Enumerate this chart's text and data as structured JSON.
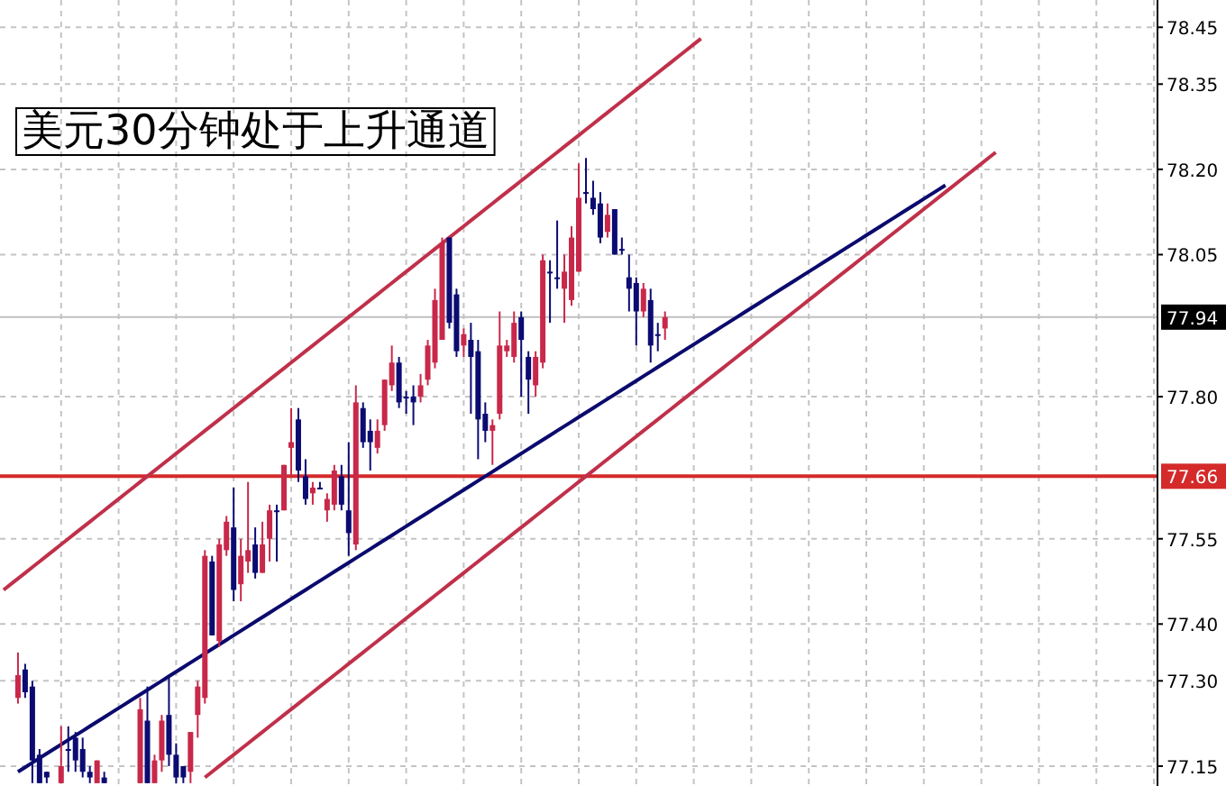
{
  "chart_data": {
    "type": "candlestick",
    "title": "美元30分钟处于上升通道",
    "categories": [
      null,
      null,
      null,
      null,
      null,
      null,
      null,
      null,
      null,
      null,
      null,
      null,
      null,
      null,
      null,
      null,
      null,
      null,
      null,
      null,
      null,
      null,
      null,
      null,
      null,
      null,
      null,
      null,
      null,
      null,
      null,
      null,
      null,
      null,
      null,
      null,
      null,
      null,
      null,
      null,
      null,
      null,
      null,
      null,
      null,
      null,
      null,
      null,
      null,
      null,
      null,
      null,
      null,
      null,
      null,
      null,
      null,
      null,
      null,
      null,
      null,
      null,
      null,
      null,
      null,
      null,
      null,
      null,
      null,
      null,
      null,
      null,
      null,
      null,
      null,
      null,
      null,
      null,
      null,
      null,
      null,
      null,
      null,
      null,
      null,
      null,
      null,
      null,
      null,
      null,
      null,
      null,
      null,
      null,
      null,
      null,
      null,
      null,
      null,
      null,
      null,
      null,
      null,
      null,
      null,
      null,
      null,
      null,
      null,
      null,
      null,
      null,
      null,
      null,
      null,
      null,
      null,
      null,
      null,
      null,
      null,
      null,
      null,
      null,
      null,
      null,
      null,
      null,
      null,
      null,
      null,
      null,
      null,
      null,
      null,
      null,
      null,
      null,
      null,
      null,
      null,
      null,
      null,
      null,
      null,
      null,
      null,
      null,
      null,
      null,
      null,
      null,
      null,
      null,
      null,
      null,
      null,
      null,
      null,
      null,
      null
    ],
    "ohlc": [
      null,
      null,
      [
        77.27,
        77.35,
        77.26,
        77.31
      ],
      [
        77.32,
        77.33,
        77.27,
        77.28
      ],
      [
        77.29,
        77.3,
        77.12,
        77.16
      ],
      [
        77.17,
        77.18,
        77.12,
        77.12
      ],
      [
        77.14,
        77.14,
        77.12,
        77.13
      ],
      null,
      [
        77.12,
        77.22,
        77.12,
        77.15
      ],
      [
        77.18,
        77.22,
        77.14,
        77.18
      ],
      [
        77.2,
        77.21,
        77.14,
        77.16
      ],
      [
        77.18,
        77.2,
        77.13,
        77.14
      ],
      [
        77.14,
        77.15,
        77.12,
        77.13
      ],
      [
        77.12,
        77.16,
        77.12,
        77.16
      ],
      [
        77.13,
        77.14,
        77.12,
        77.12
      ],
      null,
      null,
      null,
      null,
      [
        77.12,
        77.27,
        77.12,
        77.25
      ],
      [
        77.23,
        77.29,
        77.12,
        77.12
      ],
      [
        77.12,
        77.17,
        77.12,
        77.16
      ],
      [
        77.16,
        77.24,
        77.14,
        77.23
      ],
      [
        77.24,
        77.31,
        77.15,
        77.17
      ],
      [
        77.17,
        77.19,
        77.12,
        77.13
      ],
      [
        77.15,
        77.15,
        77.12,
        77.13
      ],
      [
        77.14,
        77.21,
        77.12,
        77.21
      ],
      [
        77.24,
        77.3,
        77.2,
        77.29
      ],
      [
        77.27,
        77.53,
        77.26,
        77.52
      ],
      [
        77.51,
        77.52,
        77.38,
        77.38
      ],
      [
        77.37,
        77.55,
        77.36,
        77.54
      ],
      [
        77.53,
        77.59,
        77.52,
        77.58
      ],
      [
        77.57,
        77.64,
        77.44,
        77.46
      ],
      [
        77.47,
        77.55,
        77.44,
        77.52
      ],
      [
        77.51,
        77.65,
        77.49,
        77.53
      ],
      [
        77.54,
        77.57,
        77.48,
        77.49
      ],
      [
        77.49,
        77.58,
        77.49,
        77.54
      ],
      [
        77.55,
        77.61,
        77.51,
        77.6
      ],
      [
        77.6,
        77.61,
        77.51,
        77.6
      ],
      [
        77.6,
        77.68,
        77.6,
        77.68
      ],
      [
        77.71,
        77.78,
        77.66,
        77.72
      ],
      [
        77.76,
        77.78,
        77.65,
        77.67
      ],
      [
        77.66,
        77.69,
        77.61,
        77.62
      ],
      [
        77.63,
        77.65,
        77.61,
        77.64
      ],
      [
        77.64,
        77.65,
        77.64,
        77.64
      ],
      [
        77.6,
        77.63,
        77.58,
        77.62
      ],
      [
        77.61,
        77.68,
        77.6,
        77.67
      ],
      [
        77.66,
        77.68,
        77.6,
        77.61
      ],
      [
        77.6,
        77.72,
        77.52,
        77.56
      ],
      [
        77.54,
        77.82,
        77.53,
        77.79
      ],
      [
        77.78,
        77.79,
        77.71,
        77.72
      ],
      [
        77.74,
        77.76,
        77.67,
        77.72
      ],
      [
        77.71,
        77.76,
        77.7,
        77.74
      ],
      [
        77.75,
        77.83,
        77.74,
        77.83
      ],
      [
        77.82,
        77.89,
        77.81,
        77.86
      ],
      [
        77.86,
        77.87,
        77.78,
        77.79
      ],
      [
        77.8,
        77.81,
        77.77,
        77.8
      ],
      [
        77.8,
        77.82,
        77.75,
        77.79
      ],
      [
        77.8,
        77.84,
        77.79,
        77.82
      ],
      [
        77.83,
        77.9,
        77.82,
        77.89
      ],
      [
        77.86,
        77.99,
        77.85,
        77.97
      ],
      [
        77.9,
        78.08,
        77.9,
        78.07
      ],
      [
        78.08,
        78.08,
        77.92,
        77.93
      ],
      [
        77.98,
        77.99,
        77.87,
        77.88
      ],
      [
        77.89,
        77.92,
        77.87,
        77.91
      ],
      [
        77.9,
        77.93,
        77.77,
        77.87
      ],
      [
        77.88,
        77.9,
        77.69,
        77.76
      ],
      [
        77.77,
        77.79,
        77.72,
        77.74
      ],
      [
        77.74,
        77.76,
        77.68,
        77.75
      ],
      [
        77.77,
        77.95,
        77.76,
        77.89
      ],
      [
        77.88,
        77.9,
        77.87,
        77.89
      ],
      [
        77.87,
        77.95,
        77.86,
        77.93
      ],
      [
        77.94,
        77.95,
        77.8,
        77.9
      ],
      [
        77.87,
        77.88,
        77.77,
        77.83
      ],
      [
        77.82,
        77.88,
        77.8,
        77.87
      ],
      [
        77.86,
        78.05,
        77.85,
        78.04
      ],
      [
        78.02,
        78.04,
        77.93,
        78.02
      ],
      [
        78.01,
        78.11,
        77.99,
        78.01
      ],
      [
        77.99,
        78.05,
        77.93,
        78.02
      ],
      [
        77.97,
        78.1,
        77.96,
        78.08
      ],
      [
        78.02,
        78.21,
        78.02,
        78.15
      ],
      [
        78.16,
        78.22,
        78.14,
        78.16
      ],
      [
        78.15,
        78.18,
        78.12,
        78.13
      ],
      [
        78.14,
        78.16,
        78.07,
        78.08
      ],
      [
        78.09,
        78.14,
        78.08,
        78.12
      ],
      [
        78.13,
        78.13,
        78.05,
        78.05
      ],
      [
        78.06,
        78.08,
        78.05,
        78.06
      ],
      [
        78.01,
        78.05,
        77.95,
        77.99
      ],
      [
        78.0,
        78.01,
        77.89,
        77.95
      ],
      [
        77.95,
        78.0,
        77.94,
        77.99
      ],
      [
        77.97,
        77.99,
        77.86,
        77.89
      ],
      [
        77.91,
        77.93,
        77.88,
        77.91
      ],
      [
        77.92,
        77.95,
        77.9,
        77.94
      ],
      null,
      null,
      null,
      null,
      null,
      null,
      null,
      null,
      null,
      null,
      null,
      null,
      null,
      null,
      null,
      null,
      null,
      null,
      null,
      null,
      null,
      null,
      null,
      null,
      null,
      null,
      null,
      null,
      null,
      null,
      null,
      null,
      null,
      null,
      null,
      null,
      null,
      null,
      null,
      null,
      null,
      null,
      null,
      null,
      null,
      null,
      null,
      null,
      null,
      null,
      null,
      null,
      null,
      null,
      null,
      null,
      null,
      null,
      null,
      null,
      null,
      null,
      null,
      null,
      null,
      null,
      null,
      null
    ],
    "colors": [
      null,
      null,
      "#c8284a",
      "#0b0b72",
      "#0b0b72",
      "#0b0b72",
      "#0b0b72",
      null,
      "#c8284a",
      "#0b0b72",
      "#0b0b72",
      "#0b0b72",
      "#0b0b72",
      "#c8284a",
      "#0b0b72",
      null,
      null,
      null,
      null,
      "#c8284a",
      "#0b0b72",
      "#c8284a",
      "#c8284a",
      "#0b0b72",
      "#0b0b72",
      "#0b0b72",
      "#c8284a",
      "#c8284a",
      "#c8284a",
      "#0b0b72",
      "#c8284a",
      "#c8284a",
      "#0b0b72",
      "#c8284a",
      "#c8284a",
      "#0b0b72",
      "#c8284a",
      "#c8284a",
      "#0b0b72",
      "#c8284a",
      "#c8284a",
      "#0b0b72",
      "#0b0b72",
      "#c8284a",
      "#0b0b72",
      "#c8284a",
      "#c8284a",
      "#0b0b72",
      "#0b0b72",
      "#c8284a",
      "#0b0b72",
      "#0b0b72",
      "#c8284a",
      "#c8284a",
      "#c8284a",
      "#0b0b72",
      "#0b0b72",
      "#0b0b72",
      "#c8284a",
      "#c8284a",
      "#c8284a",
      "#c8284a",
      "#0b0b72",
      "#0b0b72",
      "#c8284a",
      "#0b0b72",
      "#0b0b72",
      "#0b0b72",
      "#c8284a",
      "#c8284a",
      "#c8284a",
      "#c8284a",
      "#0b0b72",
      "#0b0b72",
      "#c8284a",
      "#c8284a",
      "#0b0b72",
      "#0b0b72",
      "#c8284a",
      "#c8284a",
      "#c8284a",
      "#0b0b72",
      "#0b0b72",
      "#0b0b72",
      "#c8284a",
      "#0b0b72",
      "#0b0b72",
      "#0b0b72",
      "#0b0b72",
      "#c8284a",
      "#0b0b72",
      "#0b0b72",
      "#c8284a",
      null,
      null,
      null,
      null,
      null,
      null,
      null,
      null,
      null,
      null,
      null,
      null,
      null,
      null,
      null,
      null,
      null,
      null,
      null,
      null,
      null,
      null,
      null,
      null,
      null,
      null,
      null,
      null,
      null,
      null,
      null,
      null,
      null,
      null,
      null,
      null,
      null,
      null,
      null,
      null,
      null,
      null,
      null,
      null,
      null,
      null,
      null,
      null,
      null,
      null,
      null,
      null,
      null,
      null,
      null,
      null,
      null,
      null,
      null,
      null,
      null,
      null,
      null,
      null,
      null,
      null,
      null,
      null
    ],
    "series": [
      {
        "type": "line",
        "color": "#c0304a",
        "values": [
          77.46,
          77.47,
          77.48,
          77.49,
          77.5,
          77.51,
          77.52,
          77.53,
          77.54,
          77.55,
          77.56,
          77.57,
          77.58,
          77.59,
          77.6,
          77.61,
          77.62,
          77.63,
          77.64,
          77.65,
          77.66,
          77.67,
          77.68,
          77.69,
          77.7,
          77.71,
          77.72,
          77.73,
          77.74,
          77.75,
          77.76,
          77.77,
          77.78,
          77.79,
          77.8,
          77.81,
          77.82,
          77.83,
          77.84,
          77.85,
          77.86,
          77.87,
          77.88,
          77.89,
          77.9,
          77.91,
          77.92,
          77.93,
          77.94,
          77.95,
          77.96,
          77.97,
          77.98,
          77.99,
          78.0,
          78.01,
          78.02,
          78.03,
          78.04,
          78.05,
          78.06,
          78.07,
          78.08,
          78.09,
          78.1,
          78.11,
          78.12,
          78.13,
          78.14,
          78.15,
          78.16,
          78.17,
          78.18,
          78.19,
          78.2,
          78.21,
          78.22,
          78.23,
          78.24,
          78.25,
          78.26,
          78.27,
          78.28,
          78.29,
          78.3,
          78.31,
          78.32,
          78.33,
          78.34,
          78.35,
          78.36,
          78.37,
          78.38,
          78.39,
          78.4,
          78.41,
          78.42,
          78.43,
          null,
          null,
          null,
          null,
          null,
          null,
          null,
          null,
          null,
          null,
          null,
          null,
          null,
          null,
          null,
          null,
          null,
          null,
          null,
          null,
          null,
          null,
          null,
          null,
          null,
          null,
          null,
          null,
          null,
          null,
          null,
          null,
          null,
          null,
          null,
          null,
          null,
          null,
          null,
          null,
          null,
          null,
          null,
          null,
          null,
          null,
          null,
          null,
          null,
          null,
          null,
          null,
          null,
          null,
          null,
          null,
          null,
          null,
          null,
          null,
          null,
          null,
          null
        ]
      },
      {
        "type": "line",
        "color": "#c0304a",
        "values": [
          null,
          null,
          null,
          null,
          null,
          null,
          null,
          null,
          null,
          null,
          null,
          null,
          null,
          null,
          null,
          null,
          null,
          null,
          null,
          null,
          null,
          null,
          null,
          null,
          null,
          null,
          null,
          null,
          77.13,
          77.14,
          77.15,
          77.16,
          77.17,
          77.18,
          77.19,
          77.2,
          77.21,
          77.22,
          77.23,
          77.24,
          77.25,
          77.26,
          77.27,
          77.28,
          77.29,
          77.3,
          77.31,
          77.32,
          77.33,
          77.34,
          77.35,
          77.36,
          77.37,
          77.38,
          77.39,
          77.4,
          77.41,
          77.42,
          77.43,
          77.44,
          77.45,
          77.46,
          77.47,
          77.48,
          77.49,
          77.5,
          77.51,
          77.52,
          77.53,
          77.54,
          77.55,
          77.56,
          77.57,
          77.58,
          77.59,
          77.6,
          77.61,
          77.62,
          77.63,
          77.64,
          77.65,
          77.66,
          77.67,
          77.68,
          77.69,
          77.7,
          77.71,
          77.72,
          77.73,
          77.74,
          77.75,
          77.76,
          77.77,
          77.78,
          77.79,
          77.8,
          77.81,
          77.82,
          77.83,
          77.84,
          77.85,
          77.86,
          77.87,
          77.88,
          77.89,
          77.9,
          77.91,
          77.92,
          77.93,
          77.94,
          77.95,
          77.96,
          77.97,
          77.98,
          77.99,
          78.0,
          78.01,
          78.02,
          78.03,
          78.04,
          78.05,
          78.06,
          78.07,
          78.08,
          78.09,
          78.1,
          78.11,
          78.12,
          78.13,
          78.14,
          78.15,
          78.16,
          78.17,
          78.18,
          78.19,
          78.2,
          78.21,
          78.22,
          78.23,
          null,
          null,
          null,
          null,
          null,
          null,
          null,
          null,
          null,
          null,
          null,
          null,
          null,
          null,
          null,
          null,
          null,
          null,
          null,
          null,
          null,
          null
        ]
      },
      {
        "type": "line",
        "color": "#0a0a6e",
        "values": [
          null,
          null,
          77.14,
          77.148,
          77.156,
          77.164,
          77.172,
          77.18,
          77.188,
          77.196,
          77.204,
          77.212,
          77.22,
          77.228,
          77.236,
          77.244,
          77.252,
          77.26,
          77.268,
          77.276,
          77.284,
          77.292,
          77.3,
          77.308,
          77.316,
          77.324,
          77.332,
          77.34,
          77.348,
          77.356,
          77.364,
          77.372,
          77.38,
          77.388,
          77.396,
          77.404,
          77.412,
          77.42,
          77.428,
          77.436,
          77.444,
          77.452,
          77.46,
          77.468,
          77.476,
          77.484,
          77.492,
          77.5,
          77.508,
          77.516,
          77.524,
          77.532,
          77.54,
          77.548,
          77.556,
          77.564,
          77.572,
          77.58,
          77.588,
          77.596,
          77.604,
          77.612,
          77.62,
          77.628,
          77.636,
          77.644,
          77.652,
          77.66,
          77.668,
          77.676,
          77.684,
          77.692,
          77.7,
          77.708,
          77.716,
          77.724,
          77.732,
          77.74,
          77.748,
          77.756,
          77.764,
          77.772,
          77.78,
          77.788,
          77.796,
          77.804,
          77.812,
          77.82,
          77.828,
          77.836,
          77.844,
          77.852,
          77.86,
          77.868,
          77.876,
          77.884,
          77.892,
          77.9,
          77.908,
          77.916,
          77.924,
          77.932,
          77.94,
          77.948,
          77.956,
          77.964,
          77.972,
          77.98,
          77.988,
          77.996,
          78.004,
          78.012,
          78.02,
          78.028,
          78.036,
          78.044,
          78.052,
          78.06,
          78.068,
          78.076,
          78.084,
          78.092,
          78.1,
          78.108,
          78.116,
          78.124,
          78.132,
          78.14,
          78.148,
          78.156,
          78.164,
          78.172,
          null,
          null,
          null,
          null,
          null,
          null,
          null,
          null,
          null,
          null,
          null,
          null,
          null,
          null,
          null,
          null,
          null,
          null,
          null,
          null,
          null,
          null,
          null,
          null,
          null,
          null,
          null,
          null,
          null
        ]
      }
    ],
    "ref_lines": [
      {
        "axis": "y",
        "value": 77.66,
        "label": "77.66",
        "color": "#d42a2a"
      },
      {
        "axis": "y",
        "value": 77.94,
        "label": "77.94",
        "color": "#c0c0c0"
      }
    ],
    "ylim": [
      77.115,
      78.498
    ],
    "yticks": [
      {
        "value": 77.15,
        "label": "77.15"
      },
      {
        "value": 77.3,
        "label": "77.30"
      },
      {
        "value": 77.4,
        "label": "77.40"
      },
      {
        "value": 77.55,
        "label": "77.55"
      },
      {
        "value": 77.8,
        "label": "77.80"
      },
      {
        "value": 78.05,
        "label": "78.05"
      },
      {
        "value": 78.2,
        "label": "78.20"
      },
      {
        "value": 78.35,
        "label": "78.35"
      },
      {
        "value": 78.45,
        "label": "78.45"
      }
    ],
    "tick_labels": "y",
    "grid": true
  }
}
